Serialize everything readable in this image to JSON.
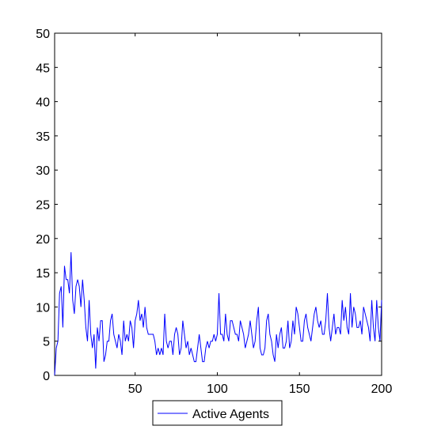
{
  "chart_data": {
    "type": "line",
    "title": "",
    "xlabel": "",
    "ylabel": "",
    "xlim": [
      1,
      200
    ],
    "ylim": [
      0,
      50
    ],
    "x_ticks": [
      50,
      100,
      150,
      200
    ],
    "y_ticks": [
      0,
      5,
      10,
      15,
      20,
      25,
      30,
      35,
      40,
      45,
      50
    ],
    "grid": false,
    "legend_position": "bottom-center, outside plot",
    "series": [
      {
        "name": "Active Agents",
        "color": "#0000ff",
        "x_start": 1,
        "x_step": 1,
        "y": [
          0,
          4,
          5,
          12,
          13,
          7,
          16,
          14,
          14,
          12,
          18,
          11,
          9,
          13,
          14,
          13,
          10,
          14,
          11,
          7,
          5,
          11,
          6,
          4,
          6,
          1,
          7,
          5,
          8,
          8,
          2,
          3,
          5,
          5,
          8,
          9,
          6,
          5,
          4,
          6,
          5,
          3,
          8,
          5,
          6,
          5,
          8,
          7,
          4,
          8,
          9,
          11,
          8,
          9,
          7,
          10,
          7,
          6,
          6,
          6,
          6,
          5,
          3,
          4,
          3,
          4,
          3,
          9,
          5,
          4,
          5,
          5,
          3,
          6,
          7,
          6,
          3,
          4,
          8,
          6,
          4,
          5,
          3,
          4,
          3,
          2,
          2,
          4,
          6,
          4,
          2,
          2,
          4,
          5,
          4,
          5,
          5,
          6,
          5,
          6,
          12,
          6,
          6,
          5,
          9,
          6,
          5,
          8,
          8,
          7,
          6,
          6,
          5,
          8,
          7,
          6,
          4,
          5,
          6,
          8,
          6,
          4,
          5,
          8,
          10,
          4,
          3,
          3,
          4,
          8,
          9,
          6,
          5,
          3,
          2,
          6,
          4,
          6,
          7,
          4,
          4,
          5,
          8,
          4,
          5,
          8,
          6,
          10,
          9,
          7,
          5,
          5,
          8,
          9,
          7,
          6,
          5,
          7,
          9,
          10,
          8,
          7,
          8,
          6,
          6,
          8,
          12,
          7,
          5,
          7,
          9,
          6,
          7,
          7,
          6,
          11,
          8,
          10,
          7,
          6,
          12,
          7,
          10,
          9,
          7,
          7,
          8,
          6,
          10,
          9,
          8,
          7,
          5,
          11,
          7,
          5,
          11,
          7,
          5,
          11
        ]
      }
    ]
  }
}
